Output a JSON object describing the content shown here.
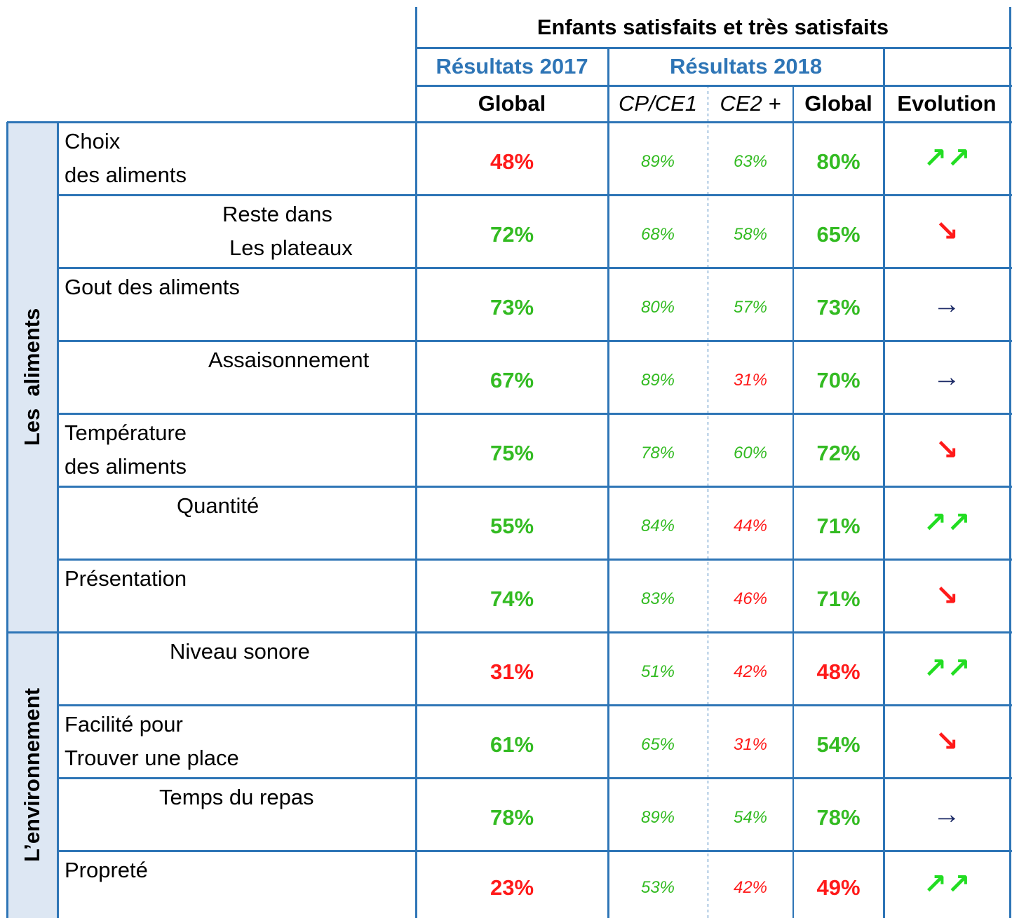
{
  "header": {
    "title": "Enfants satisfaits et très satisfaits",
    "results_2017": "Résultats 2017",
    "results_2018": "Résultats 2018",
    "columns": [
      "Global",
      "CP/CE1",
      "CE2 +",
      "Global",
      "Evolution"
    ]
  },
  "groups": [
    {
      "label": "Les  aliments",
      "rows": [
        {
          "label": [
            "Choix",
            "des aliments"
          ],
          "cells": [
            "48%",
            "89%",
            "63%",
            "80%",
            "↗↗"
          ],
          "colors": [
            "#ff1a1a",
            "#33bb22",
            "#33bb22",
            "#33bb22",
            "#22dd22"
          ]
        },
        {
          "label": [
            "Reste dans",
            "Les plateaux"
          ],
          "cells": [
            "72%",
            "68%",
            "58%",
            "65%",
            "↘"
          ],
          "colors": [
            "#33bb22",
            "#33bb22",
            "#33bb22",
            "#33bb22",
            "#ff1a1a"
          ]
        },
        {
          "label": [
            "Gout des aliments"
          ],
          "cells": [
            "73%",
            "80%",
            "57%",
            "73%",
            "→"
          ],
          "colors": [
            "#33bb22",
            "#33bb22",
            "#33bb22",
            "#33bb22",
            "#1c2a66"
          ]
        },
        {
          "label": [
            "Assaisonnement"
          ],
          "cells": [
            "67%",
            "89%",
            "31%",
            "70%",
            "→"
          ],
          "colors": [
            "#33bb22",
            "#33bb22",
            "#ff1a1a",
            "#33bb22",
            "#1c2a66"
          ]
        },
        {
          "label": [
            "Température",
            "des aliments"
          ],
          "cells": [
            "75%",
            "78%",
            "60%",
            "72%",
            "↘"
          ],
          "colors": [
            "#33bb22",
            "#33bb22",
            "#33bb22",
            "#33bb22",
            "#ff1a1a"
          ]
        },
        {
          "label": [
            "Quantité"
          ],
          "cells": [
            "55%",
            "84%",
            "44%",
            "71%",
            "↗↗"
          ],
          "colors": [
            "#33bb22",
            "#33bb22",
            "#ff1a1a",
            "#33bb22",
            "#22dd22"
          ]
        },
        {
          "label": [
            "Présentation"
          ],
          "cells": [
            "74%",
            "83%",
            "46%",
            "71%",
            "↘"
          ],
          "colors": [
            "#33bb22",
            "#33bb22",
            "#ff1a1a",
            "#33bb22",
            "#ff1a1a"
          ]
        }
      ]
    },
    {
      "label": "L’environnement",
      "rows": [
        {
          "label": [
            "Niveau sonore"
          ],
          "cells": [
            "31%",
            "51%",
            "42%",
            "48%",
            "↗↗"
          ],
          "colors": [
            "#ff1a1a",
            "#33bb22",
            "#ff1a1a",
            "#ff1a1a",
            "#22dd22"
          ]
        },
        {
          "label": [
            "Facilité pour",
            "Trouver une place"
          ],
          "cells": [
            "61%",
            "65%",
            "31%",
            "54%",
            "↘"
          ],
          "colors": [
            "#33bb22",
            "#33bb22",
            "#ff1a1a",
            "#33bb22",
            "#ff1a1a"
          ]
        },
        {
          "label": [
            "Temps du repas"
          ],
          "cells": [
            "78%",
            "89%",
            "54%",
            "78%",
            "→"
          ],
          "colors": [
            "#33bb22",
            "#33bb22",
            "#33bb22",
            "#33bb22",
            "#1c2a66"
          ]
        },
        {
          "label": [
            "Propreté"
          ],
          "cells": [
            "23%",
            "53%",
            "42%",
            "49%",
            "↗↗"
          ],
          "colors": [
            "#ff1a1a",
            "#33bb22",
            "#ff1a1a",
            "#ff1a1a",
            "#22dd22"
          ]
        }
      ]
    }
  ]
}
